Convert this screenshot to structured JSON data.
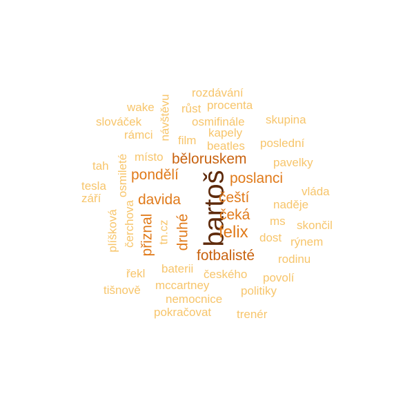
{
  "colors": {
    "light": "#f7c56b",
    "medium": "#f0a44a",
    "orange": "#e07a1a",
    "dark_orange": "#c8620f",
    "brown": "#5e2a0b"
  },
  "words": {
    "bartos": "bartoš",
    "beloruskem": "běloruskem",
    "pondeli": "pondělí",
    "poslanci": "poslanci",
    "davida": "davida",
    "cesti": "čeští",
    "ceka": "čeká",
    "felix": "felix",
    "fotbaliste": "fotbalisté",
    "priznal": "přiznal",
    "druhe": "druhé",
    "rozdavani": "rozdávání",
    "wake": "wake",
    "navstevu": "návštěvu",
    "rust": "růst",
    "procenta": "procenta",
    "slovacek": "slováček",
    "osmifinale": "osmifinále",
    "skupina": "skupina",
    "ramci": "rámci",
    "kapely": "kapely",
    "film": "film",
    "posledni": "poslední",
    "beatles": "beatles",
    "misto": "místo",
    "osmilete": "osmileté",
    "tah": "tah",
    "pavelky": "pavelky",
    "tesla": "tesla",
    "vlada": "vláda",
    "zari": "září",
    "nadeje": "naděje",
    "pliskova": "plíšková",
    "cerchova": "čerchova",
    "tn_cz": "tn.cz",
    "ms": "ms",
    "skoncil": "skončil",
    "dost": "dost",
    "rynem": "rýnem",
    "rodinu": "rodinu",
    "baterii": "baterii",
    "rekl": "řekl",
    "ceskeho": "českého",
    "povoli": "povolí",
    "mccartney": "mccartney",
    "tisnove": "tišnově",
    "politiky": "politiky",
    "nemocnice": "nemocnice",
    "pokracovat": "pokračovat",
    "trener": "trenér"
  }
}
